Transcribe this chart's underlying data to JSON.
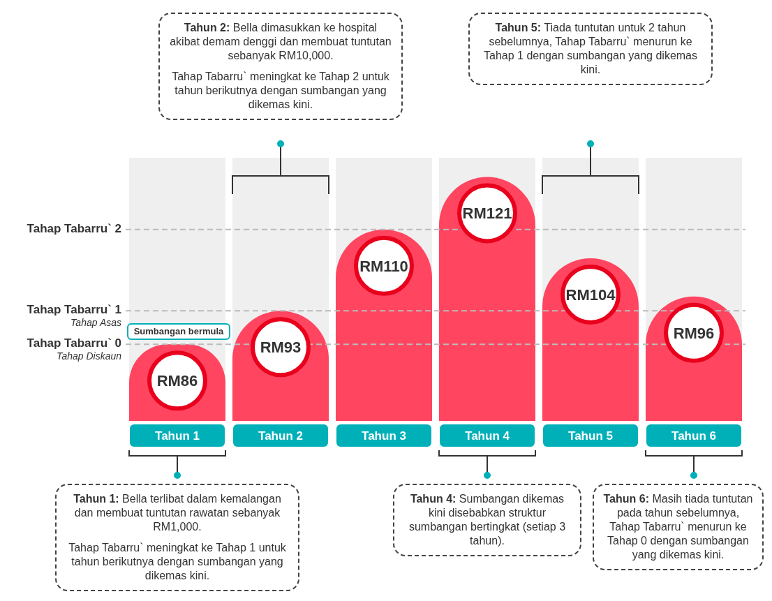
{
  "chart_data": {
    "type": "bar",
    "categories": [
      "Tahun 1",
      "Tahun 2",
      "Tahun 3",
      "Tahun 4",
      "Tahun 5",
      "Tahun 6"
    ],
    "values": [
      86,
      93,
      110,
      121,
      104,
      96
    ],
    "value_labels": [
      "RM86",
      "RM93",
      "RM110",
      "RM121",
      "RM104",
      "RM96"
    ],
    "color": "#ff4560",
    "ylim": [
      70,
      125
    ],
    "ref_lines": [
      {
        "axis": "y",
        "value": 110,
        "label": "Tahap Tabarru` 2",
        "color": "#bbbbbb",
        "line_style": "dashed"
      },
      {
        "axis": "y",
        "value": 93,
        "label": "Tahap Tabarru` 1\nTahap Asas",
        "color": "#bbbbbb",
        "line_style": "dashed"
      },
      {
        "axis": "y",
        "value": 86,
        "label": "Tahap Tabarru` 0\nTahap Diskaun",
        "color": "#bbbbbb",
        "line_style": "dashed"
      }
    ],
    "annotations": [
      {
        "text": "Sumbangan bermula",
        "x": "Tahun 1",
        "y": 86
      },
      "Tahun 1: Bella terlibat dalam kemalangan dan membuat tuntutan rawatan sebanyak RM1,000.\nTahap Tabarru` meningkat ke Tahap 1 untuk tahun berikutnya dengan sumbangan yang dikemas kini.",
      "Tahun 2: Bella dimasukkan ke hospital akibat demam denggi dan membuat tuntutan sebanyak RM10,000.\nTahap Tabarru` meningkat ke Tahap 2 untuk tahun berikutnya dengan sumbangan yang dikemas kini.",
      "Tahun 4: Sumbangan dikemas kini disebabkan struktur sumbangan bertingkat (setiap 3 tahun).",
      "Tahun 5: Tiada tuntutan untuk 2 tahun sebelumnya, Tahap Tabarru` menurun ke Tahap 1 dengan sumbangan yang dikemas kini.",
      "Tahun 6: Masih tiada tuntutan pada tahun sebelumnya, Tahap Tabarru` menurun ke Tahap 0 dengan sumbangan yang dikemas kini."
    ]
  }
}
